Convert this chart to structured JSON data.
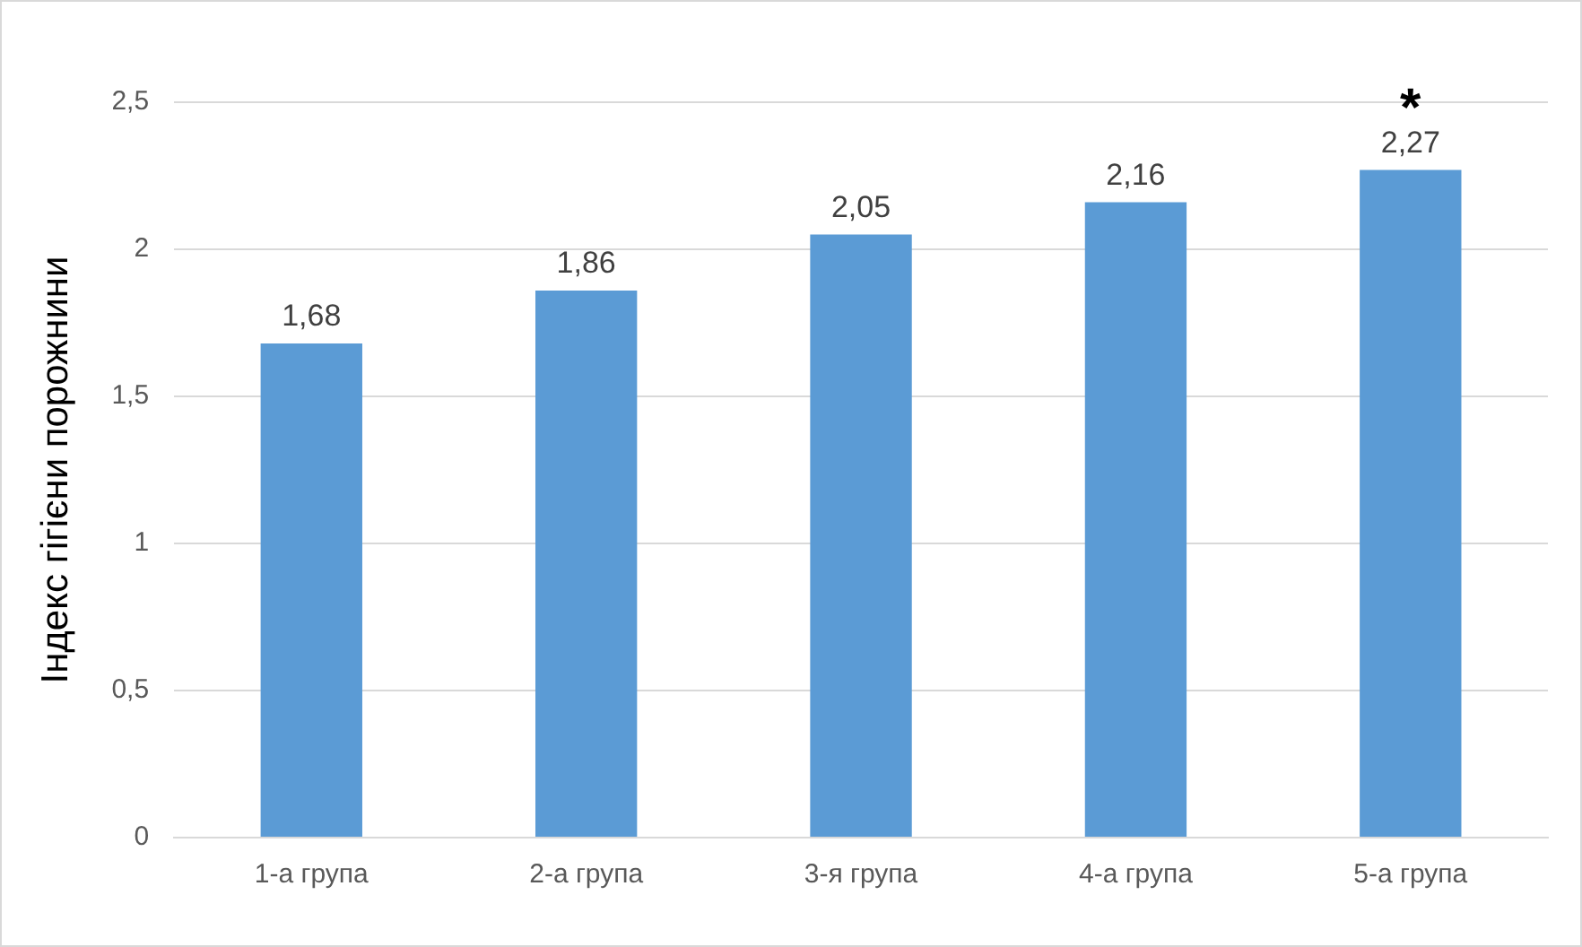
{
  "chart_data": {
    "type": "bar",
    "ylabel": "Індекс гігієни порожнини",
    "categories": [
      "1-а група",
      "2-а група",
      "3-я група",
      "4-а група",
      "5-а група"
    ],
    "values": [
      1.68,
      1.86,
      2.05,
      2.16,
      2.27
    ],
    "value_labels": [
      "1,68",
      "1,86",
      "2,05",
      "2,16",
      "2,27"
    ],
    "color": "#5b9bd5",
    "ylim": [
      0,
      2.5
    ],
    "yticks": [
      0,
      {
        "value": 0.5,
        "label": "0,5"
      },
      1,
      {
        "value": 1.5,
        "label": "1,5"
      },
      2,
      {
        "value": 2.5,
        "label": "2,5"
      }
    ],
    "grid": "y",
    "legend": false,
    "annotations": [
      {
        "text": "*",
        "x": "5-а група",
        "y": 2.27
      }
    ]
  }
}
